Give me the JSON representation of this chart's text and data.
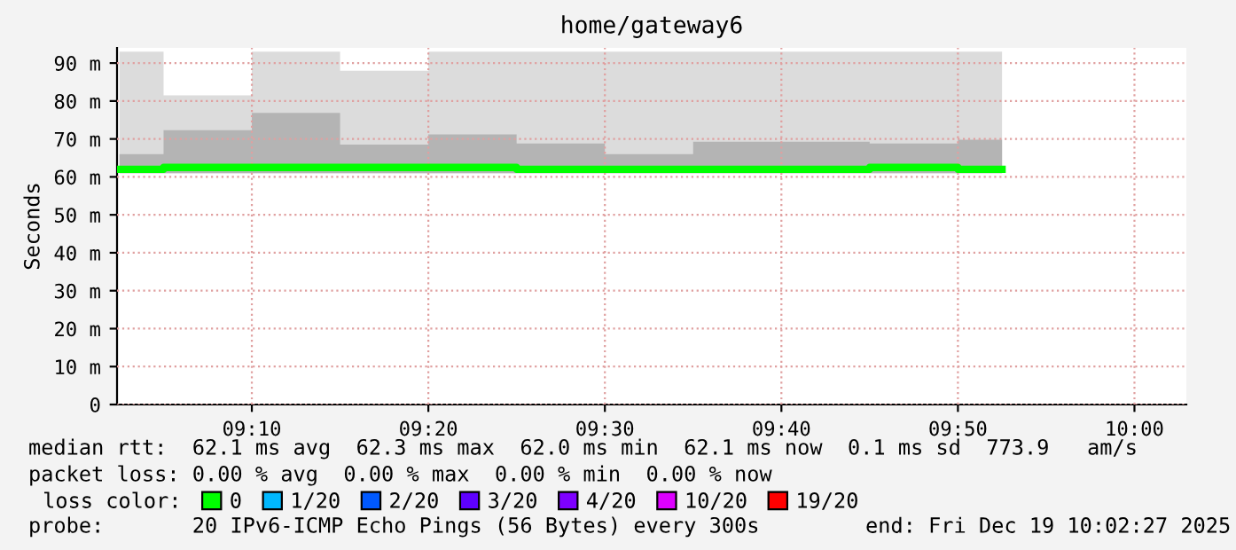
{
  "chart_data": {
    "type": "step",
    "title": "home/gateway6",
    "ylabel": "Seconds",
    "x": [
      9.04167,
      9.125,
      9.20833,
      9.29167,
      9.375,
      9.45833,
      9.54167,
      9.625,
      9.70833,
      9.79167,
      9.875
    ],
    "series": [
      {
        "color": "#dcdcdc",
        "lower": [
          61,
          61,
          61,
          61,
          61,
          61,
          61,
          61,
          61,
          61,
          61
        ],
        "upper": [
          93,
          81.5,
          93,
          88,
          93,
          93,
          93,
          93,
          93,
          93,
          93
        ],
        "values": [
          null,
          null,
          null,
          null,
          null,
          null,
          null,
          null,
          null,
          null,
          null
        ]
      },
      {
        "color": "#b4b4b4",
        "lower": [
          61,
          61,
          61,
          61,
          61,
          61,
          61,
          61,
          61,
          61,
          61
        ],
        "upper": [
          66,
          72.3,
          76.9,
          68.5,
          71.2,
          68.8,
          66,
          69.3,
          69.3,
          68.8,
          69.8
        ],
        "values": [
          null,
          null,
          null,
          null,
          null,
          null,
          null,
          null,
          null,
          null,
          null
        ]
      },
      {
        "name": "0",
        "color": "#00ff00",
        "values": [
          62,
          62.5,
          62.5,
          62.5,
          62.5,
          62,
          62,
          62,
          62,
          62.5,
          62
        ]
      },
      {
        "name": "1/20",
        "color": "#00b8ff",
        "values": [
          null,
          null,
          null,
          null,
          null,
          null,
          null,
          null,
          null,
          null,
          null
        ]
      },
      {
        "name": "2/20",
        "color": "#0059ff",
        "values": [
          null,
          null,
          null,
          null,
          null,
          null,
          null,
          null,
          null,
          null,
          null
        ]
      },
      {
        "name": "3/20",
        "color": "#5e00ff",
        "values": [
          null,
          null,
          null,
          null,
          null,
          null,
          null,
          null,
          null,
          null,
          null
        ]
      },
      {
        "name": "4/20",
        "color": "#7e00ff",
        "values": [
          null,
          null,
          null,
          null,
          null,
          null,
          null,
          null,
          null,
          null,
          null
        ]
      },
      {
        "name": "10/20",
        "color": "#dd00ff",
        "values": [
          null,
          null,
          null,
          null,
          null,
          null,
          null,
          null,
          null,
          null,
          null
        ]
      },
      {
        "name": "19/20",
        "color": "#ff0000",
        "values": [
          null,
          null,
          null,
          null,
          null,
          null,
          null,
          null,
          null,
          null,
          null
        ]
      }
    ],
    "legend_title": "loss color:",
    "legend": "bottom",
    "xlim": [
      9.0394,
      10.049
    ],
    "xticks": [
      {
        "value": 9.16667,
        "label": "09:10"
      },
      {
        "value": 9.33333,
        "label": "09:20"
      },
      {
        "value": 9.5,
        "label": "09:30"
      },
      {
        "value": 9.66667,
        "label": "09:40"
      },
      {
        "value": 9.83333,
        "label": "09:50"
      },
      {
        "value": 10.0,
        "label": "10:00"
      }
    ],
    "ylim": [
      0,
      94
    ],
    "yticks": [
      0,
      {
        "value": 10,
        "label": "10 m"
      },
      {
        "value": 20,
        "label": "20 m"
      },
      {
        "value": 30,
        "label": "30 m"
      },
      {
        "value": 40,
        "label": "40 m"
      },
      {
        "value": 50,
        "label": "50 m"
      },
      {
        "value": 60,
        "label": "60 m"
      },
      {
        "value": 70,
        "label": "70 m"
      },
      {
        "value": 80,
        "label": "80 m"
      },
      {
        "value": 90,
        "label": "90 m"
      }
    ],
    "grid": true,
    "annotations": [
      "median rtt:  62.1 ms avg  62.3 ms max  62.0 ms min  62.1 ms now  0.1 ms sd  773.9   am/s",
      "packet loss: 0.00 % avg  0.00 % max  0.00 % min  0.00 % now",
      "probe:       20 IPv6-ICMP Echo Pings (56 Bytes) every 300s",
      "end: Fri Dec 19 10:02:27 2025"
    ]
  }
}
